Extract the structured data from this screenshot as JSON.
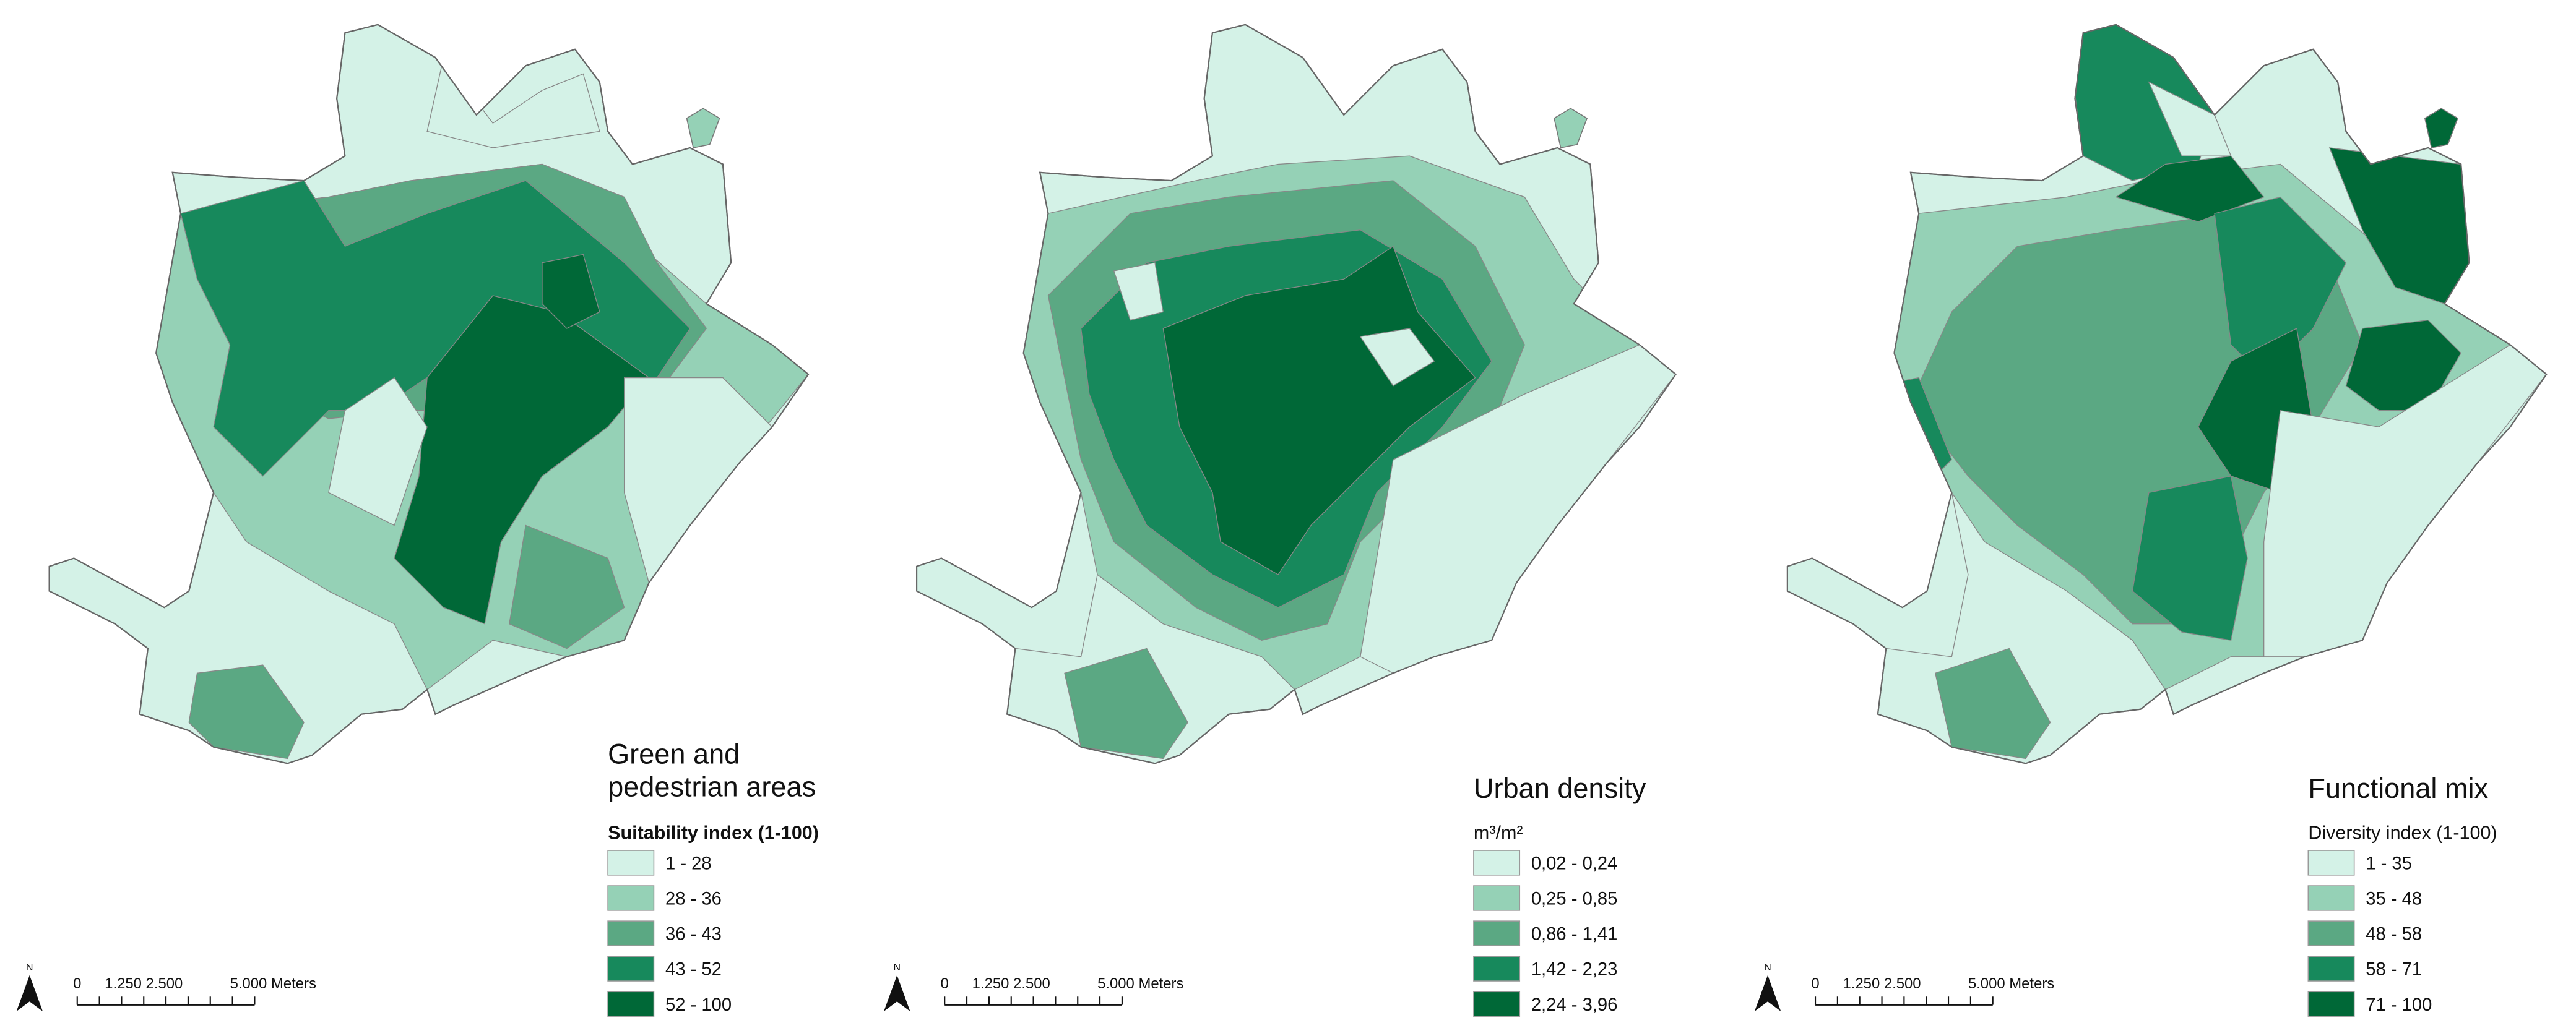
{
  "maps": [
    {
      "title": [
        "Green and",
        "pedestrian areas"
      ],
      "subtitle": "Suitability index (1-100)",
      "legend": [
        {
          "label": "1 - 28",
          "color": "#d4f2e7"
        },
        {
          "label": "28 - 36",
          "color": "#95d1b6"
        },
        {
          "label": "36 - 43",
          "color": "#5ba883"
        },
        {
          "label": "43 - 52",
          "color": "#17895c"
        },
        {
          "label": "52 - 100",
          "color": "#006837"
        }
      ]
    },
    {
      "title": [
        "Urban density"
      ],
      "subtitle": "m³/m²",
      "legend": [
        {
          "label": "0,02 - 0,24",
          "color": "#d4f2e7"
        },
        {
          "label": "0,25 - 0,85",
          "color": "#95d1b6"
        },
        {
          "label": "0,86 - 1,41",
          "color": "#5ba883"
        },
        {
          "label": "1,42 - 2,23",
          "color": "#17895c"
        },
        {
          "label": "2,24 - 3,96",
          "color": "#006837"
        }
      ]
    },
    {
      "title": [
        "Functional mix"
      ],
      "subtitle": "Diversity index (1-100)",
      "legend": [
        {
          "label": "1 - 35",
          "color": "#d4f2e7"
        },
        {
          "label": "35 - 48",
          "color": "#95d1b6"
        },
        {
          "label": "48 - 58",
          "color": "#5ba883"
        },
        {
          "label": "58 - 71",
          "color": "#17895c"
        },
        {
          "label": "71 - 100",
          "color": "#006837"
        }
      ]
    }
  ],
  "scale_bar": {
    "north": "N",
    "labels": [
      "0",
      "1.250",
      "2.500",
      "5.000 Meters"
    ]
  }
}
